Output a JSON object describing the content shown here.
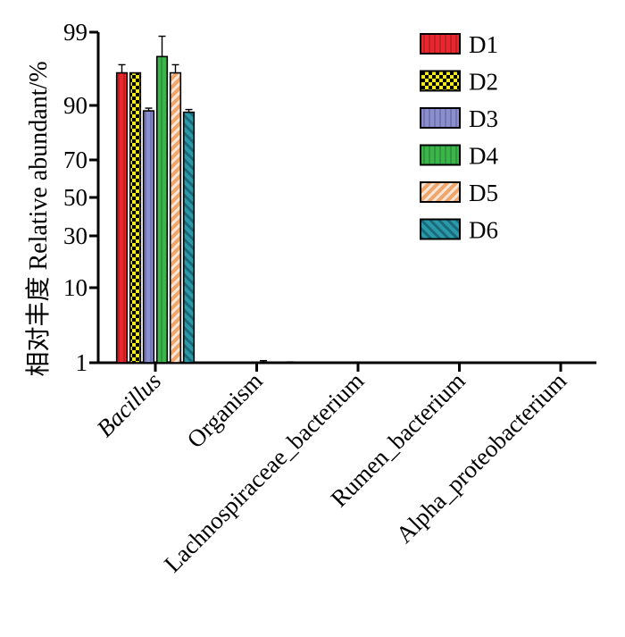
{
  "chart_data": {
    "type": "bar",
    "ylabel": "相对丰度 Relative abundant/%",
    "yscale": "custom-broken",
    "yticks": [
      1,
      10,
      30,
      50,
      70,
      90,
      99
    ],
    "categories": [
      "Bacillus",
      "Organism",
      "Lachnospiraceae_bacterium",
      "Rumen_bacterium",
      "Alpha_proteobacterium"
    ],
    "italic_categories": [
      "Bacillus"
    ],
    "series": [
      {
        "name": "D1",
        "color": "#e8282e",
        "pattern": "vlines",
        "values": [
          94,
          0,
          0,
          0,
          0
        ],
        "errors": [
          1,
          0,
          0,
          0,
          0
        ]
      },
      {
        "name": "D2",
        "color": "#f2ea1d",
        "pattern": "checker",
        "values": [
          94,
          0,
          0,
          0,
          0
        ],
        "errors": [
          0,
          0,
          0,
          0,
          0
        ]
      },
      {
        "name": "D3",
        "color": "#8b8fd0",
        "pattern": "vlines",
        "values": [
          88,
          0,
          0,
          0,
          0
        ],
        "errors": [
          1,
          0,
          0,
          0,
          0
        ]
      },
      {
        "name": "D4",
        "color": "#3bb54a",
        "pattern": "vlines",
        "values": [
          96,
          1.05,
          0,
          0,
          0
        ],
        "errors": [
          2.5,
          0.2,
          0,
          0,
          0
        ]
      },
      {
        "name": "D5",
        "color": "#f0a56b",
        "pattern": "diagonal",
        "values": [
          94,
          0,
          0,
          0,
          0
        ],
        "errors": [
          1,
          0,
          0,
          0,
          0
        ]
      },
      {
        "name": "D6",
        "color": "#2a9aaa",
        "pattern": "diagonal-back",
        "values": [
          87.5,
          1.02,
          0,
          0,
          0
        ],
        "errors": [
          1,
          0.08,
          0,
          0,
          0
        ]
      }
    ],
    "legend_position": "top-right",
    "grid": false
  }
}
